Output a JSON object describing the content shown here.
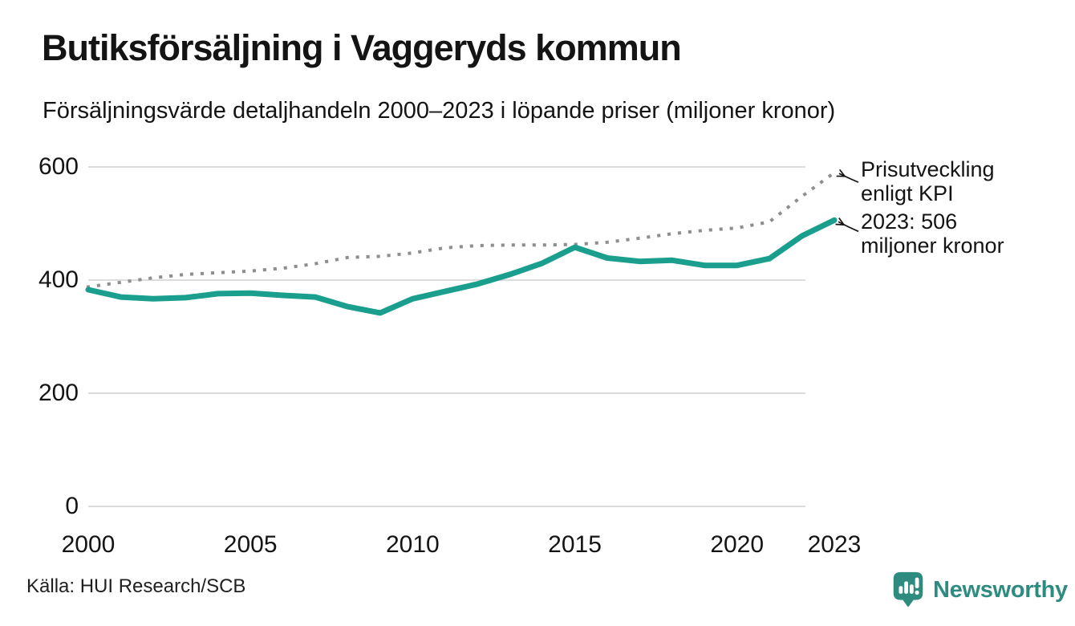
{
  "chart_data": {
    "type": "line",
    "title": "Butiksförsäljning i Vaggeryds kommun",
    "subtitle": "Försäljningsvärde detaljhandeln 2000–2023 i löpande priser (miljoner kronor)",
    "x": [
      2000,
      2001,
      2002,
      2003,
      2004,
      2005,
      2006,
      2007,
      2008,
      2009,
      2010,
      2011,
      2012,
      2013,
      2014,
      2015,
      2016,
      2017,
      2018,
      2019,
      2020,
      2021,
      2022,
      2023
    ],
    "series": [
      {
        "name": "Butiksförsäljning i löpande priser (miljoner kronor)",
        "style": "solid",
        "color": "#1a9e8d",
        "values": [
          383,
          370,
          367,
          369,
          376,
          377,
          373,
          370,
          353,
          342,
          367,
          380,
          393,
          410,
          430,
          458,
          439,
          433,
          435,
          426,
          426,
          438,
          478,
          506
        ]
      },
      {
        "name": "Prisutveckling enligt KPI",
        "style": "dotted",
        "color": "#8e8e8e",
        "values": [
          388,
          396,
          404,
          410,
          413,
          416,
          421,
          429,
          440,
          442,
          448,
          457,
          461,
          462,
          462,
          463,
          467,
          474,
          482,
          488,
          492,
          503,
          548,
          590
        ]
      }
    ],
    "ylim": [
      0,
      600
    ],
    "yticks": [
      0,
      200,
      400,
      600
    ],
    "xticks": [
      2000,
      2005,
      2010,
      2015,
      2020,
      2023
    ],
    "grid": "horizontal-only",
    "legend": "inline-annotations",
    "annotations": [
      {
        "lines": [
          "Prisutveckling",
          "enligt KPI"
        ],
        "points_to": "kpi-line-end-2023"
      },
      {
        "lines": [
          "2023: 506",
          "miljoner kronor"
        ],
        "points_to": "sales-line-end-2023"
      }
    ],
    "last_value_label": "2023: 506 miljoner kronor"
  },
  "footer": {
    "source": "Källa: HUI Research/SCB",
    "brand": "Newsworthy"
  },
  "colors": {
    "sales_line": "#1a9e8d",
    "kpi_dots": "#8e8e8e",
    "grid": "#dcdcdc",
    "text": "#141414",
    "arrow": "#141414",
    "brand_teal": "#2e8b7f",
    "background": "#ffffff"
  },
  "icons": {
    "brand": "newsworthy-speech-bubble-bar-chart-icon"
  }
}
